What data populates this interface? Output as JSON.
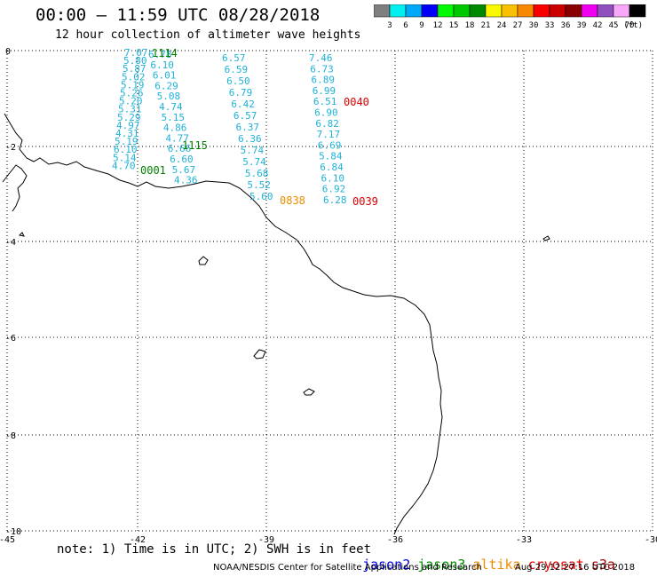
{
  "header": {
    "title": "00:00 – 11:59 UTC 08/28/2018",
    "subtitle": "12 hour collection of altimeter wave heights"
  },
  "colorbar": {
    "colors": [
      "#7f7f7f",
      "#00f0f0",
      "#00a8f8",
      "#0000f8",
      "#00f800",
      "#00c800",
      "#008800",
      "#f8f800",
      "#f8c000",
      "#f88800",
      "#f80000",
      "#c80000",
      "#880000",
      "#f000f0",
      "#9050c0",
      "#f8a8f8",
      "#000000"
    ],
    "labels": [
      "3",
      "6",
      "9",
      "12",
      "15",
      "18",
      "21",
      "24",
      "27",
      "30",
      "33",
      "36",
      "39",
      "42",
      "45",
      "70"
    ],
    "unit": "(ft)"
  },
  "axes": {
    "x_labels": [
      "-45",
      "-42",
      "-39",
      "-36",
      "-33",
      "-30"
    ],
    "y_labels": [
      "0",
      "-2",
      "-4",
      "-6",
      "-8",
      "-10"
    ]
  },
  "tracks": [
    {
      "values": [
        "7.07",
        "5.80",
        "5.87",
        "5.02",
        "5.19",
        "5.26",
        "5.20",
        "5.31",
        "5.29",
        "4.97",
        "4.31",
        "5.19",
        "6.10",
        "5.14",
        "4.70"
      ]
    },
    {
      "values": [
        "6.78",
        "6.10",
        "6.01",
        "6.29",
        "5.08",
        "4.74",
        "5.15",
        "4.86",
        "4.77",
        "6.66",
        "6.60",
        "5.67",
        "4.36"
      ]
    },
    {
      "values": [
        "6.57",
        "6.59",
        "6.50",
        "6.79",
        "6.42",
        "6.57",
        "6.37",
        "6.36",
        "5.74",
        "5.74",
        "5.68",
        "5.52",
        "5.60"
      ]
    },
    {
      "values": [
        "7.46",
        "6.73",
        "6.89",
        "6.99",
        "6.51",
        "6.90",
        "6.82",
        "7.17",
        "6.69",
        "5.84",
        "6.84",
        "6.10",
        "6.92",
        "6.28"
      ]
    }
  ],
  "passes": [
    {
      "label": "1114",
      "color": "#007f00"
    },
    {
      "label": "1115",
      "color": "#007f00"
    },
    {
      "label": "0001",
      "color": "#007f00"
    },
    {
      "label": "0040",
      "color": "#e00000"
    },
    {
      "label": "0838",
      "color": "#f08c00"
    },
    {
      "label": "0039",
      "color": "#e00000"
    }
  ],
  "note": "note: 1) Time is in UTC; 2) SWH is in feet",
  "legend": [
    {
      "label": "jason2",
      "color": "#0000e0"
    },
    {
      "label": "jason3",
      "color": "#008800"
    },
    {
      "label": "altika",
      "color": "#f08c00"
    },
    {
      "label": "cryosat",
      "color": "#e00000"
    },
    {
      "label": "s3a",
      "color": "#a00000"
    }
  ],
  "footer": "NOAA/NESDIS Center for Satellite Applications and Research",
  "timestamp": "Aug 29 12:27:16 UTC 2018"
}
